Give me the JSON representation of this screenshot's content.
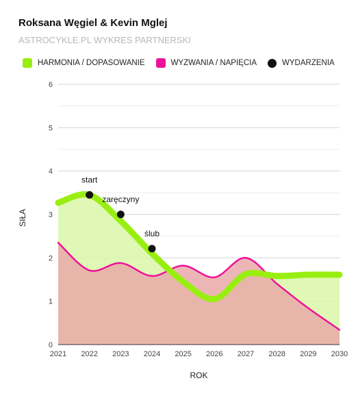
{
  "header": {
    "title": "Roksana Węgiel & Kevin Mglej",
    "subtitle": "ASTROCYKLE.PL WYKRES PARTNERSKI"
  },
  "legend": {
    "items": [
      {
        "label": "HARMONIA / DOPASOWANIE",
        "color": "#99ee11",
        "marker": "square"
      },
      {
        "label": "WYZWANIA / NAPIĘCIA",
        "color": "#ee1199",
        "marker": "square"
      },
      {
        "label": "WYDARZENIA",
        "color": "#111111",
        "marker": "circle"
      }
    ]
  },
  "chart_data": {
    "type": "area",
    "xlabel": "ROK",
    "ylabel": "SIŁA",
    "xlim": [
      2021,
      2030
    ],
    "ylim": [
      0,
      6
    ],
    "x_ticks": [
      "2021",
      "2022",
      "2023",
      "2024",
      "2025",
      "2026",
      "2027",
      "2028",
      "2029",
      "2030"
    ],
    "y_ticks": [
      "0",
      "1",
      "2",
      "3",
      "4",
      "5",
      "6"
    ],
    "grid": true,
    "legend_position": "top",
    "x": [
      2021,
      2022,
      2023,
      2024,
      2025,
      2026,
      2027,
      2028,
      2029,
      2030
    ],
    "series": [
      {
        "name": "HARMONIA / DOPASOWANIE",
        "color": "#99ee11",
        "fill": "#d9f7a8",
        "line_width": "thick",
        "values": [
          3.27,
          3.45,
          2.85,
          2.1,
          1.45,
          1.05,
          1.62,
          1.58,
          1.61,
          1.61
        ]
      },
      {
        "name": "WYZWANIA / NAPIĘCIA",
        "color": "#ee1199",
        "fill": "#eaa9a9",
        "line_width": "thin",
        "values": [
          2.35,
          1.71,
          1.88,
          1.58,
          1.82,
          1.55,
          2.0,
          1.4,
          0.84,
          0.34
        ]
      }
    ],
    "events": [
      {
        "label": "start",
        "x": 2022,
        "y": 3.45
      },
      {
        "label": "zaręczyny",
        "x": 2023,
        "y": 3.0
      },
      {
        "label": "ślub",
        "x": 2024,
        "y": 2.21
      }
    ]
  }
}
